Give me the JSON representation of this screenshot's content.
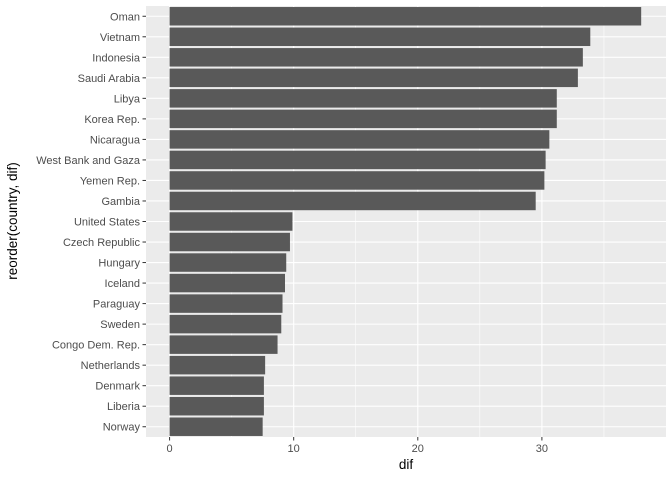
{
  "chart_data": {
    "type": "bar",
    "orientation": "horizontal",
    "title": "",
    "xlabel": "dif",
    "ylabel": "reorder(country, dif)",
    "xlim": [
      -1.9,
      40
    ],
    "xticks": [
      0,
      10,
      20,
      30
    ],
    "grid": true,
    "legend": "none",
    "categories": [
      "Oman",
      "Vietnam",
      "Indonesia",
      "Saudi Arabia",
      "Libya",
      "Korea Rep.",
      "Nicaragua",
      "West Bank and Gaza",
      "Yemen Rep.",
      "Gambia",
      "United States",
      "Czech Republic",
      "Hungary",
      "Iceland",
      "Paraguay",
      "Sweden",
      "Congo Dem. Rep.",
      "Netherlands",
      "Denmark",
      "Liberia",
      "Norway"
    ],
    "values": [
      38.0,
      33.9,
      33.3,
      32.9,
      31.2,
      31.2,
      30.6,
      30.3,
      30.2,
      29.5,
      9.9,
      9.7,
      9.4,
      9.3,
      9.1,
      9.0,
      8.7,
      7.7,
      7.6,
      7.6,
      7.5
    ]
  },
  "colors": {
    "panel_background": "#ebebeb",
    "grid_major": "#ffffff",
    "bar_fill": "#595959",
    "tick_text": "#4d4d4d",
    "tick_mark": "#333333"
  }
}
